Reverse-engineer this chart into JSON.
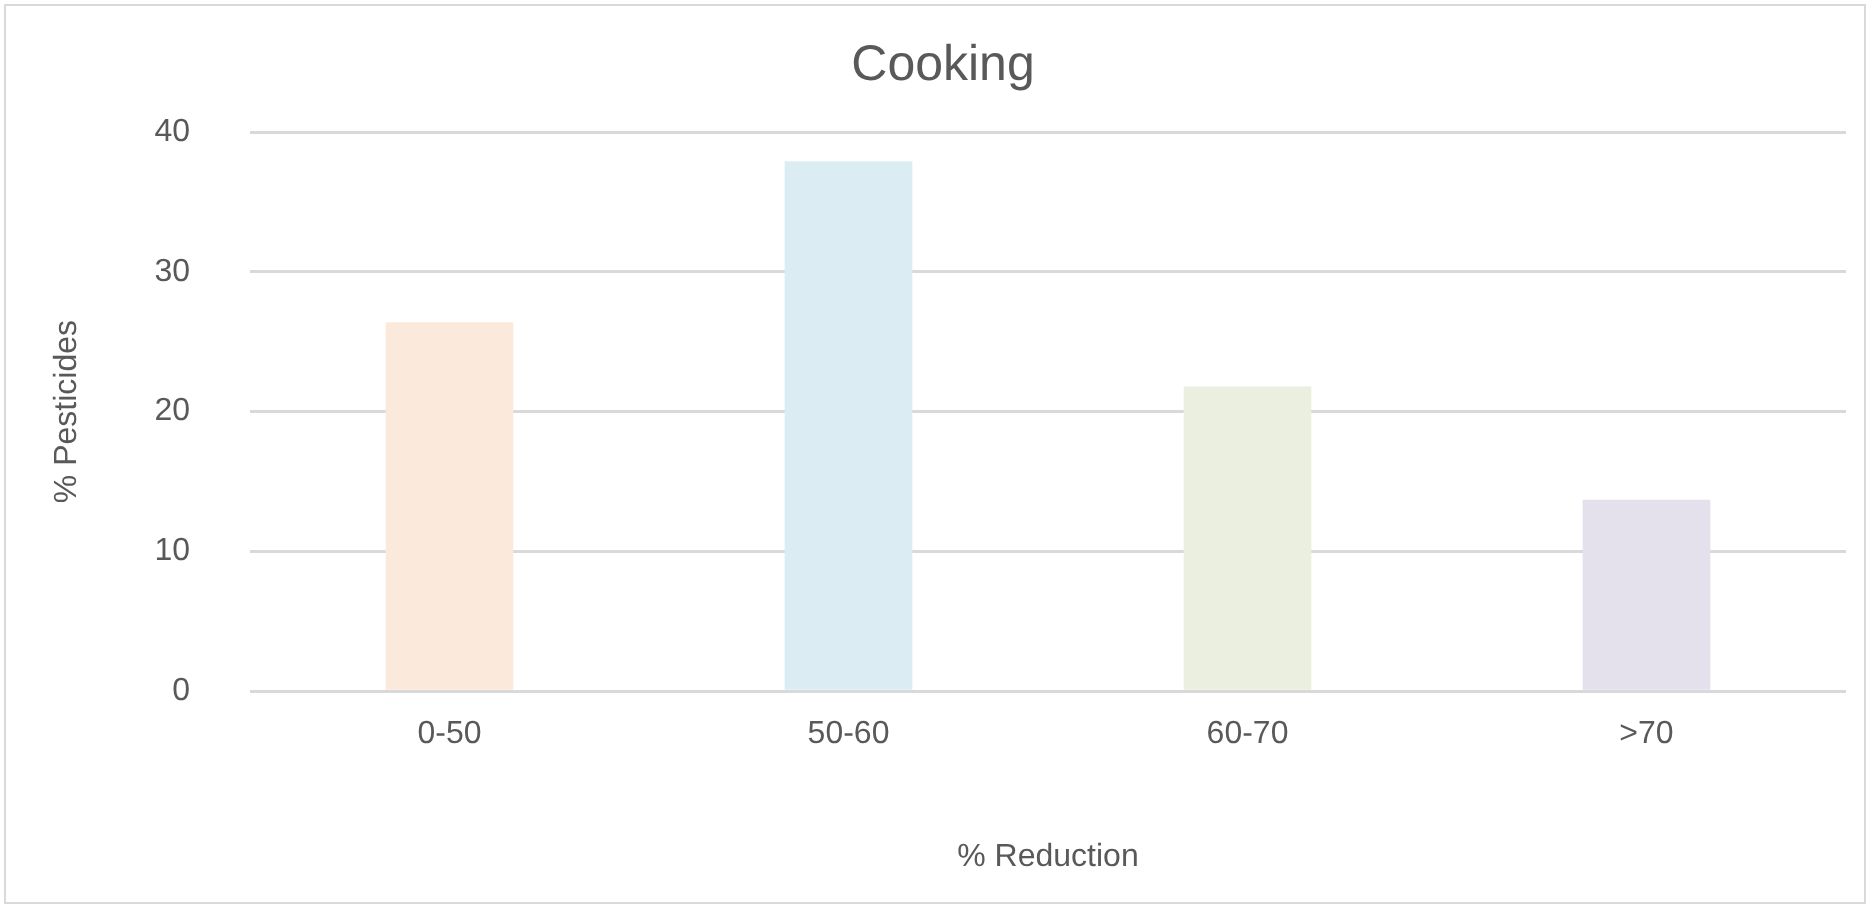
{
  "chart_data": {
    "type": "bar",
    "title": "Cooking",
    "xlabel": "% Reduction",
    "ylabel": "% Pesticides",
    "categories": [
      "0-50",
      "50-60",
      "60-70",
      ">70"
    ],
    "values": [
      26.4,
      37.9,
      21.8,
      13.7
    ],
    "colors": [
      "#fbe9dc",
      "#dbedf3",
      "#ebefdf",
      "#e4e0ec"
    ],
    "ylim": [
      0,
      40
    ],
    "yticks": [
      0,
      10,
      20,
      30,
      40
    ],
    "grid": "y",
    "legend": false
  }
}
